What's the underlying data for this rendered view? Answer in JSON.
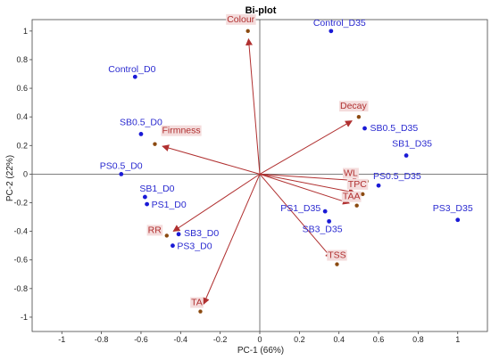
{
  "chart_data": {
    "type": "scatter",
    "title": "Bi-plot",
    "xlabel": "PC-1 (66%)",
    "ylabel": "PC-2 (22%)",
    "xlim": [
      -1.15,
      1.15
    ],
    "ylim": [
      -1.1,
      1.08
    ],
    "x_ticks": [
      -1,
      -0.8,
      -0.6,
      -0.4,
      -0.2,
      0,
      0.2,
      0.4,
      0.6,
      0.8,
      1
    ],
    "y_ticks": [
      1,
      0.8,
      0.6,
      0.4,
      0.2,
      0,
      -0.2,
      -0.4,
      -0.6,
      -0.8,
      -1
    ],
    "observations": [
      {
        "name": "Control_D0",
        "x": -0.63,
        "y": 0.68
      },
      {
        "name": "SB0.5_D0",
        "x": -0.6,
        "y": 0.28
      },
      {
        "name": "PS0.5_D0",
        "x": -0.7,
        "y": 0.0
      },
      {
        "name": "SB1_D0",
        "x": -0.58,
        "y": -0.16
      },
      {
        "name": "PS1_D0",
        "x": -0.57,
        "y": -0.21
      },
      {
        "name": "SB3_D0",
        "x": -0.41,
        "y": -0.42
      },
      {
        "name": "PS3_D0",
        "x": -0.44,
        "y": -0.5
      },
      {
        "name": "Control_D35",
        "x": 0.36,
        "y": 1.0
      },
      {
        "name": "SB0.5_D35",
        "x": 0.53,
        "y": 0.32
      },
      {
        "name": "SB1_D35",
        "x": 0.74,
        "y": 0.13
      },
      {
        "name": "PS0.5_D35",
        "x": 0.6,
        "y": -0.08
      },
      {
        "name": "PS1_D35",
        "x": 0.33,
        "y": -0.26
      },
      {
        "name": "SB3_D35",
        "x": 0.35,
        "y": -0.33
      },
      {
        "name": "PS3_D35",
        "x": 1.0,
        "y": -0.32
      }
    ],
    "variables": [
      {
        "name": "Colour",
        "x": -0.06,
        "y": 1.0
      },
      {
        "name": "Decay",
        "x": 0.5,
        "y": 0.4
      },
      {
        "name": "Firmness",
        "x": -0.53,
        "y": 0.21
      },
      {
        "name": "WL",
        "x": 0.54,
        "y": -0.05
      },
      {
        "name": "TPC",
        "x": 0.52,
        "y": -0.14
      },
      {
        "name": "TAA",
        "x": 0.49,
        "y": -0.22
      },
      {
        "name": "RR",
        "x": -0.47,
        "y": -0.43
      },
      {
        "name": "TSS",
        "x": 0.39,
        "y": -0.63
      },
      {
        "name": "TA",
        "x": -0.3,
        "y": -0.96
      }
    ],
    "colors": {
      "observation": "#1a1ad6",
      "variable_point": "#8b4a10",
      "arrow": "#b03030",
      "label_highlight": "#f4dcdc"
    }
  }
}
